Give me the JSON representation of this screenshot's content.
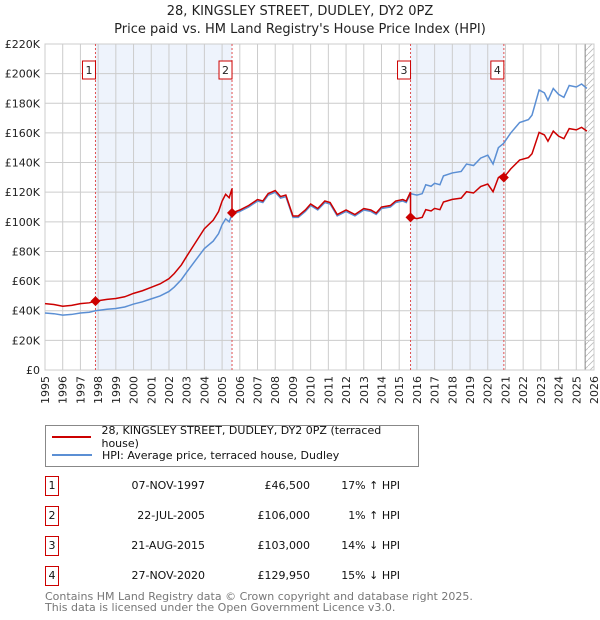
{
  "chart_data": {
    "type": "line",
    "title": "28, KINGSLEY STREET, DUDLEY, DY2 0PZ",
    "subtitle": "Price paid vs. HM Land Registry's House Price Index (HPI)",
    "ylim": [
      0,
      220000
    ],
    "xlim": [
      1995,
      2026
    ],
    "y_ticks": [
      "£0",
      "£20K",
      "£40K",
      "£60K",
      "£80K",
      "£100K",
      "£120K",
      "£140K",
      "£160K",
      "£180K",
      "£200K",
      "£220K"
    ],
    "x_ticks": [
      "1995",
      "1996",
      "1997",
      "1998",
      "1999",
      "2000",
      "2001",
      "2002",
      "2003",
      "2004",
      "2005",
      "2006",
      "2007",
      "2008",
      "2009",
      "2010",
      "2011",
      "2012",
      "2013",
      "2014",
      "2015",
      "2016",
      "2017",
      "2018",
      "2019",
      "2020",
      "2021",
      "2022",
      "2023",
      "2024",
      "2025",
      "2026"
    ],
    "hatch_from": 2025.5,
    "colors": {
      "property": "#cc0000",
      "hpi": "#5b8fd4",
      "shade": "#eef3fc",
      "sale_line": "#e05050"
    },
    "hpi_series": [
      [
        1995.0,
        38.5
      ],
      [
        1995.5,
        38
      ],
      [
        1996.0,
        37
      ],
      [
        1996.5,
        37.5
      ],
      [
        1997.0,
        38.5
      ],
      [
        1997.5,
        39
      ],
      [
        1997.85,
        40
      ],
      [
        1998.5,
        41
      ],
      [
        1999.0,
        41.5
      ],
      [
        1999.5,
        42.5
      ],
      [
        2000.0,
        44.5
      ],
      [
        2000.5,
        46
      ],
      [
        2001.0,
        48
      ],
      [
        2001.5,
        50
      ],
      [
        2002.0,
        53
      ],
      [
        2002.3,
        56
      ],
      [
        2002.7,
        61
      ],
      [
        2003.0,
        66
      ],
      [
        2003.5,
        74
      ],
      [
        2004.0,
        82
      ],
      [
        2004.5,
        87
      ],
      [
        2004.8,
        92
      ],
      [
        2005.0,
        98
      ],
      [
        2005.2,
        102
      ],
      [
        2005.4,
        100
      ],
      [
        2005.55,
        105
      ],
      [
        2006.0,
        107
      ],
      [
        2006.5,
        110
      ],
      [
        2007.0,
        114
      ],
      [
        2007.3,
        113
      ],
      [
        2007.6,
        118
      ],
      [
        2008.0,
        120
      ],
      [
        2008.3,
        116
      ],
      [
        2008.6,
        117
      ],
      [
        2009.0,
        103
      ],
      [
        2009.3,
        103
      ],
      [
        2009.7,
        107
      ],
      [
        2010.0,
        111
      ],
      [
        2010.4,
        108
      ],
      [
        2010.8,
        113
      ],
      [
        2011.1,
        112
      ],
      [
        2011.5,
        104
      ],
      [
        2012.0,
        107
      ],
      [
        2012.5,
        104
      ],
      [
        2013.0,
        108
      ],
      [
        2013.4,
        107
      ],
      [
        2013.7,
        105
      ],
      [
        2014.0,
        109
      ],
      [
        2014.5,
        110
      ],
      [
        2014.8,
        113
      ],
      [
        2015.2,
        114
      ],
      [
        2015.4,
        113
      ],
      [
        2015.64,
        119
      ],
      [
        2016.0,
        118
      ],
      [
        2016.3,
        119
      ],
      [
        2016.5,
        125
      ],
      [
        2016.8,
        124
      ],
      [
        2017.0,
        126
      ],
      [
        2017.3,
        125
      ],
      [
        2017.5,
        131
      ],
      [
        2018.0,
        133
      ],
      [
        2018.5,
        134
      ],
      [
        2018.8,
        139
      ],
      [
        2019.2,
        138
      ],
      [
        2019.6,
        143
      ],
      [
        2020.0,
        145
      ],
      [
        2020.3,
        139
      ],
      [
        2020.6,
        150
      ],
      [
        2020.9,
        153
      ],
      [
        2021.3,
        160
      ],
      [
        2021.8,
        167
      ],
      [
        2022.3,
        169
      ],
      [
        2022.5,
        172
      ],
      [
        2022.9,
        189
      ],
      [
        2023.2,
        187
      ],
      [
        2023.4,
        182
      ],
      [
        2023.7,
        190
      ],
      [
        2024.0,
        186
      ],
      [
        2024.3,
        184
      ],
      [
        2024.6,
        192
      ],
      [
        2025.0,
        191
      ],
      [
        2025.3,
        193
      ],
      [
        2025.6,
        190
      ]
    ],
    "sales": [
      {
        "n": "1",
        "t": 1997.85,
        "value": 46500
      },
      {
        "n": "2",
        "t": 2005.56,
        "value": 106000
      },
      {
        "n": "3",
        "t": 2015.64,
        "value": 103000
      },
      {
        "n": "4",
        "t": 2020.91,
        "value": 129950
      }
    ],
    "legend": {
      "property": "28, KINGSLEY STREET, DUDLEY, DY2 0PZ (terraced house)",
      "hpi": "HPI: Average price, terraced house, Dudley"
    }
  },
  "transactions": [
    {
      "n": "1",
      "date": "07-NOV-1997",
      "price": "£46,500",
      "hpi": "17% ↑ HPI"
    },
    {
      "n": "2",
      "date": "22-JUL-2005",
      "price": "£106,000",
      "hpi": "1% ↑ HPI"
    },
    {
      "n": "3",
      "date": "21-AUG-2015",
      "price": "£103,000",
      "hpi": "14% ↓ HPI"
    },
    {
      "n": "4",
      "date": "27-NOV-2020",
      "price": "£129,950",
      "hpi": "15% ↓ HPI"
    }
  ],
  "footer": {
    "line1": "Contains HM Land Registry data © Crown copyright and database right 2025.",
    "line2": "This data is licensed under the Open Government Licence v3.0."
  }
}
